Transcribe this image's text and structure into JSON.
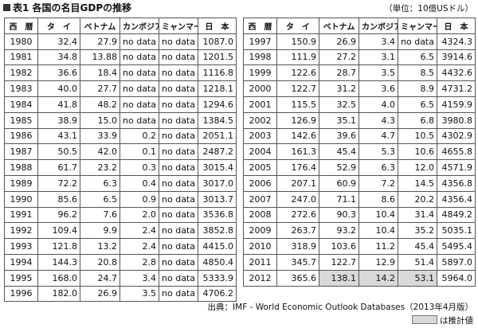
{
  "header": {
    "title": "表1 各国の名目GDPの推移",
    "unit": "（単位：10億USドル）"
  },
  "tables": [
    {
      "columns": [
        "西　暦",
        "タ　イ",
        "ベトナム",
        "カンボジア",
        "ミャンマー",
        "日　本"
      ],
      "rows": [
        [
          "1980",
          "32.4",
          "27.9",
          "no data",
          "no data",
          "1087.0"
        ],
        [
          "1981",
          "34.8",
          "13.88",
          "no data",
          "no data",
          "1201.5"
        ],
        [
          "1982",
          "36.6",
          "18.4",
          "no data",
          "no data",
          "1116.8"
        ],
        [
          "1983",
          "40.0",
          "27.7",
          "no data",
          "no data",
          "1218.1"
        ],
        [
          "1984",
          "41.8",
          "48.2",
          "no data",
          "no data",
          "1294.6"
        ],
        [
          "1985",
          "38.9",
          "15.0",
          "no data",
          "no data",
          "1384.5"
        ],
        [
          "1986",
          "43.1",
          "33.9",
          "0.2",
          "no data",
          "2051.1"
        ],
        [
          "1987",
          "50.5",
          "42.0",
          "0.1",
          "no data",
          "2487.2"
        ],
        [
          "1988",
          "61.7",
          "23.2",
          "0.3",
          "no data",
          "3015.4"
        ],
        [
          "1989",
          "72.2",
          "6.3",
          "0.4",
          "no data",
          "3017.0"
        ],
        [
          "1990",
          "85.6",
          "6.5",
          "0.9",
          "no data",
          "3013.7"
        ],
        [
          "1991",
          "96.2",
          "7.6",
          "2.0",
          "no data",
          "3536.8"
        ],
        [
          "1992",
          "109.4",
          "9.9",
          "2.4",
          "no data",
          "3852.8"
        ],
        [
          "1993",
          "121.8",
          "13.2",
          "2.4",
          "no data",
          "4415.0"
        ],
        [
          "1994",
          "144.3",
          "20.8",
          "2.8",
          "no data",
          "4850.4"
        ],
        [
          "1995",
          "168.0",
          "24.7",
          "3.4",
          "no data",
          "5333.9"
        ],
        [
          "1996",
          "182.0",
          "26.9",
          "3.5",
          "no data",
          "4706.2"
        ]
      ]
    },
    {
      "columns": [
        "西　暦",
        "タ　イ",
        "ベトナム",
        "カンボジア",
        "ミャンマー",
        "日　本"
      ],
      "rows": [
        [
          "1997",
          "150.9",
          "26.9",
          "3.4",
          "no data",
          "4324.3"
        ],
        [
          "1998",
          "111.9",
          "27.2",
          "3.1",
          "6.5",
          "3914.6"
        ],
        [
          "1999",
          "122.6",
          "28.7",
          "3.5",
          "8.5",
          "4432.6"
        ],
        [
          "2000",
          "122.7",
          "31.2",
          "3.6",
          "8.9",
          "4731.2"
        ],
        [
          "2001",
          "115.5",
          "32.5",
          "4.0",
          "6.5",
          "4159.9"
        ],
        [
          "2002",
          "126.9",
          "35.1",
          "4.3",
          "6.8",
          "3980.8"
        ],
        [
          "2003",
          "142.6",
          "39.6",
          "4.7",
          "10.5",
          "4302.9"
        ],
        [
          "2004",
          "161.3",
          "45.4",
          "5.3",
          "10.6",
          "4655.8"
        ],
        [
          "2005",
          "176.4",
          "52.9",
          "6.3",
          "12.0",
          "4571.9"
        ],
        [
          "2006",
          "207.1",
          "60.9",
          "7.2",
          "14.5",
          "4356.8"
        ],
        [
          "2007",
          "247.0",
          "71.1",
          "8.6",
          "20.2",
          "4356.4"
        ],
        [
          "2008",
          "272.6",
          "90.3",
          "10.4",
          "31.4",
          "4849.2"
        ],
        [
          "2009",
          "263.7",
          "93.2",
          "10.4",
          "35.2",
          "5035.1"
        ],
        [
          "2010",
          "318.9",
          "103.6",
          "11.2",
          "45.4",
          "5495.4"
        ],
        [
          "2011",
          "345.7",
          "122.7",
          "12.9",
          "51.4",
          "5897.0"
        ],
        [
          "2012",
          "365.6",
          "138.1",
          "14.2",
          "53.1",
          "5964.0"
        ]
      ]
    }
  ],
  "source": "出典：IMF - World Economic Outlook Databases（2013年4月版）",
  "legend": "は推計値"
}
